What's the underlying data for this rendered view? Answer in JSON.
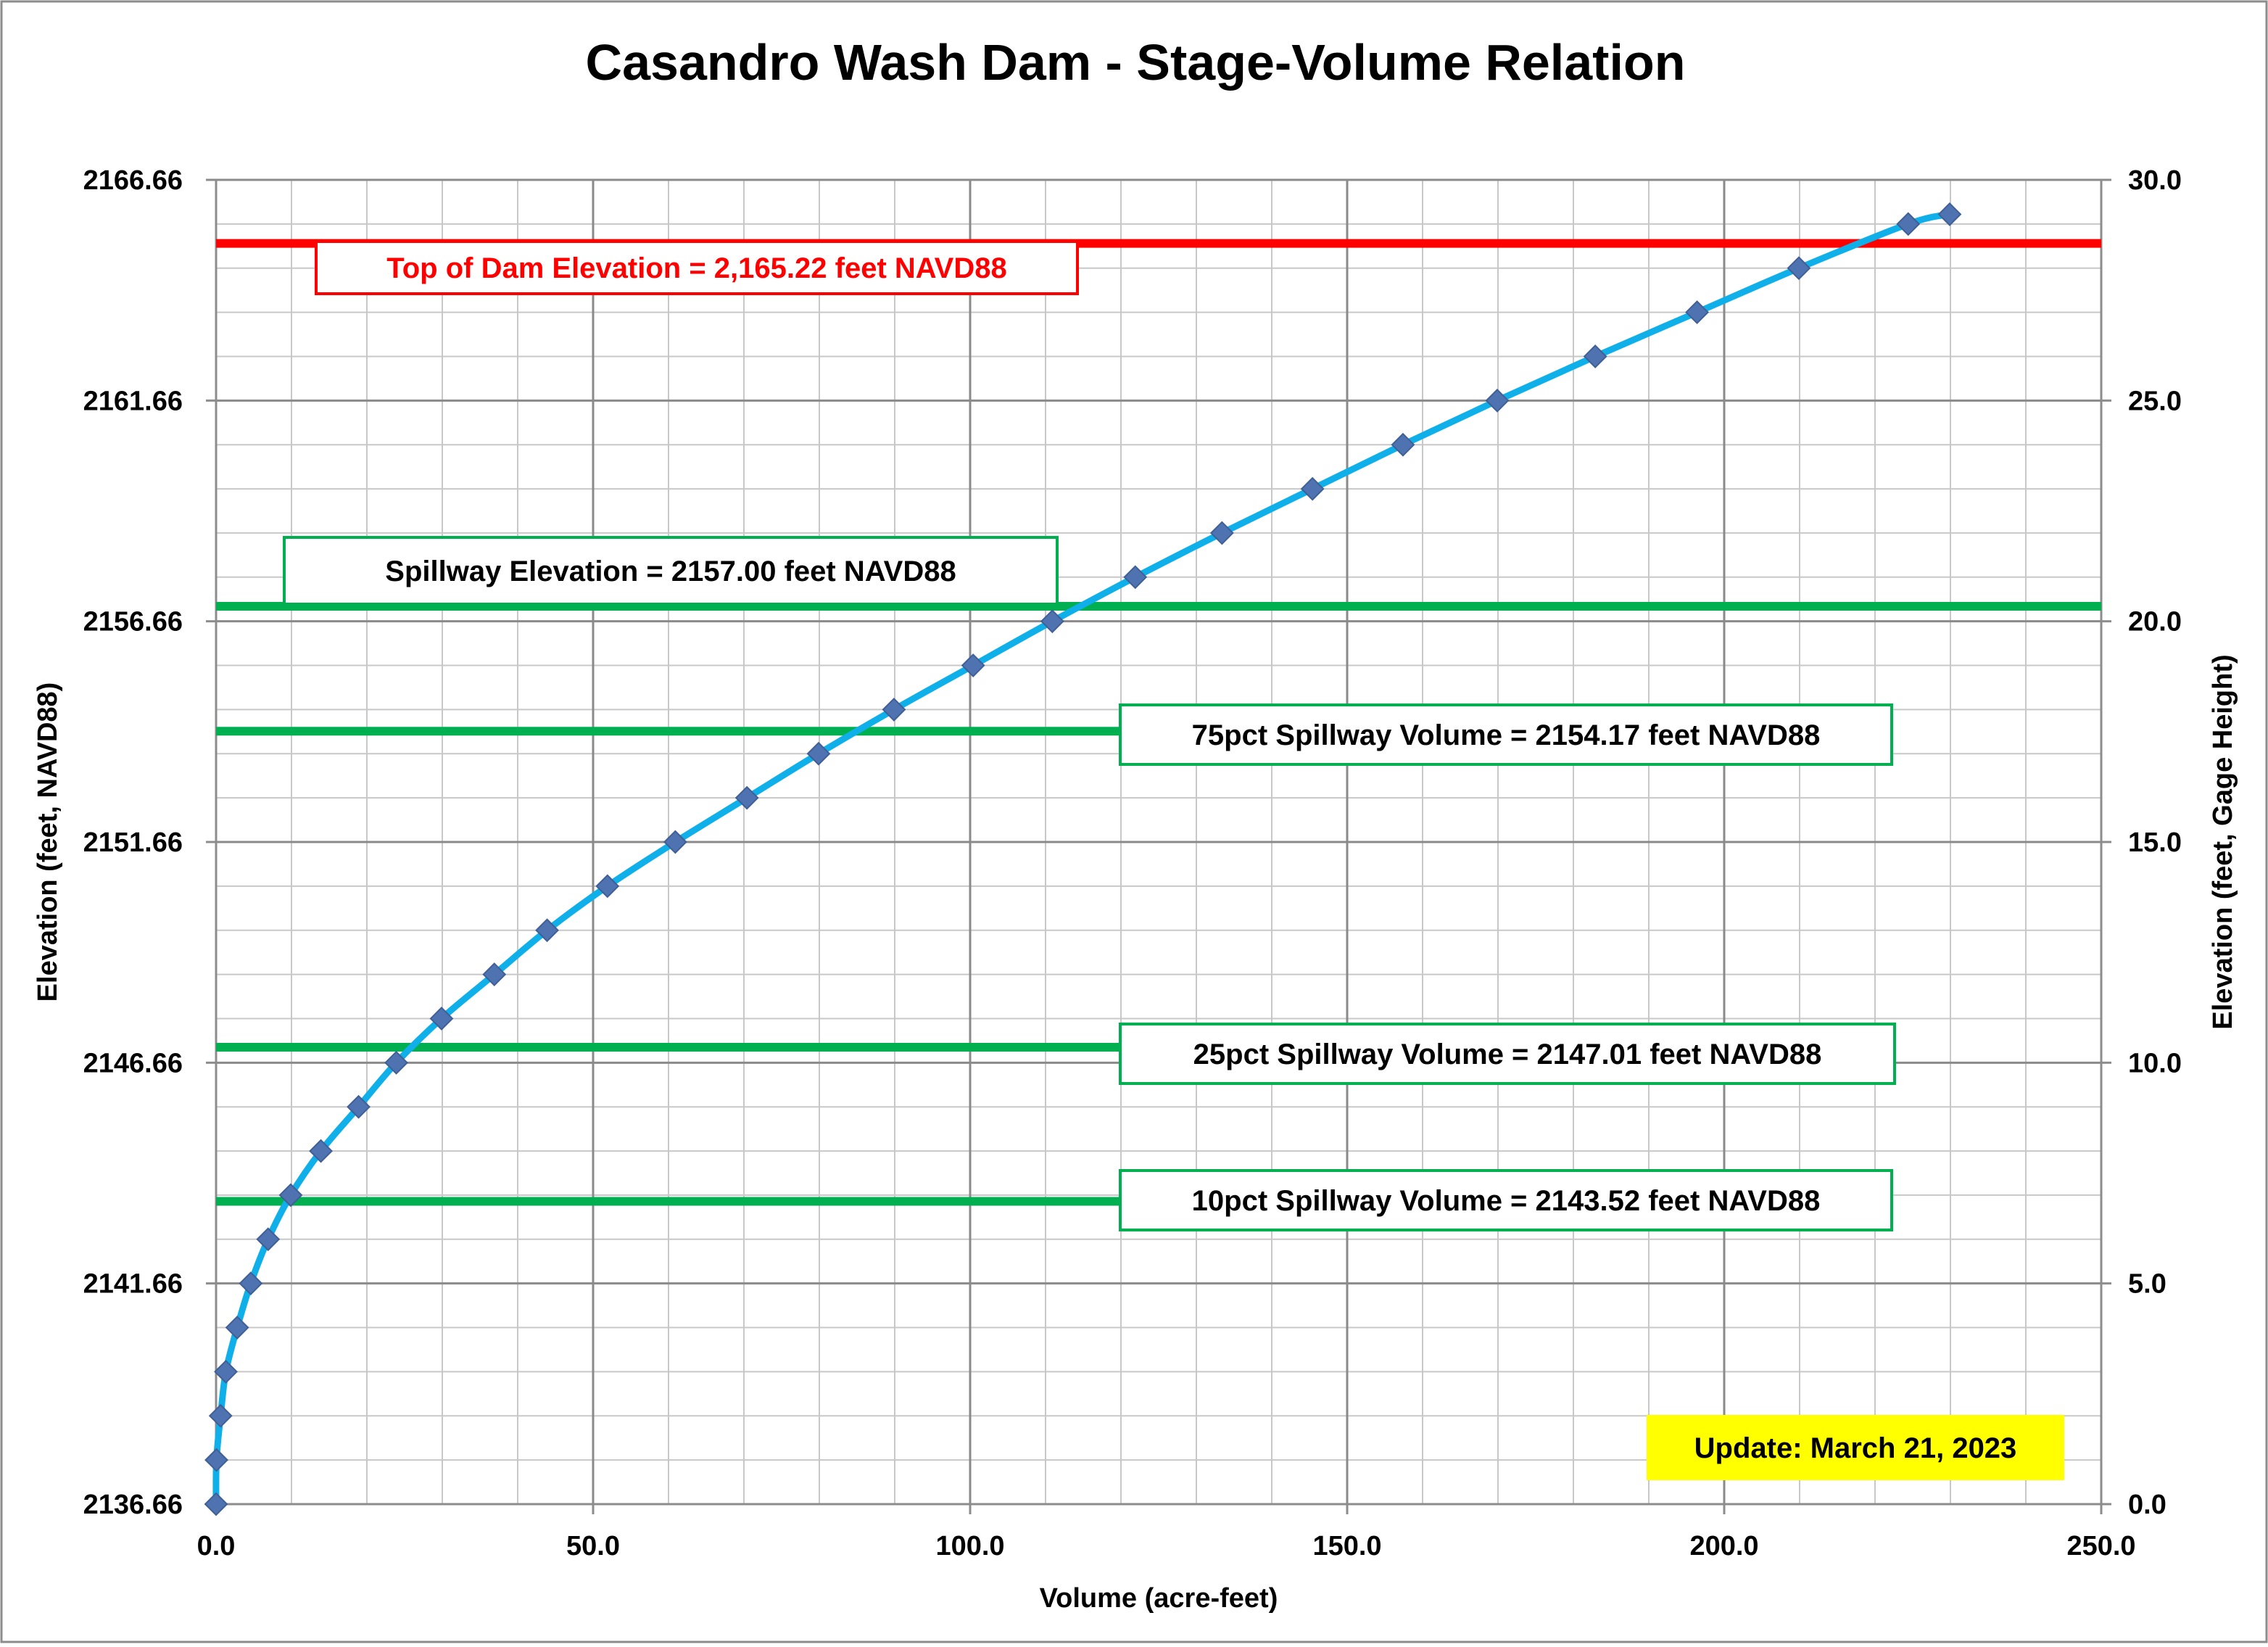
{
  "chart_data": {
    "type": "scatter",
    "title": "Casandro Wash Dam - Stage-Volume Relation",
    "xlabel": "Volume (acre-feet)",
    "ylabel": "Elevation (feet, NAVD88)",
    "y2label": "Elevation (feet, Gage Height)",
    "xlim": [
      0,
      250
    ],
    "ylim": [
      2136.66,
      2166.66
    ],
    "y2lim": [
      0,
      30
    ],
    "x_ticks": [
      "0.0",
      "50.0",
      "100.0",
      "150.0",
      "200.0",
      "250.0"
    ],
    "y_ticks": [
      "2136.66",
      "2141.66",
      "2146.66",
      "2151.66",
      "2156.66",
      "2161.66",
      "2166.66"
    ],
    "y2_ticks": [
      "0.0",
      "5.0",
      "10.0",
      "15.0",
      "20.0",
      "25.0",
      "30.0"
    ],
    "grid": true,
    "series": [
      {
        "style": "smooth line with diamond markers",
        "color": "#0fb0ea",
        "marker_color": "#4f72b0",
        "x": [
          0.0,
          0.05,
          0.6,
          1.3,
          2.8,
          4.6,
          6.9,
          9.9,
          13.9,
          18.9,
          23.9,
          29.9,
          36.9,
          43.9,
          51.9,
          60.9,
          70.4,
          79.9,
          89.9,
          100.4,
          110.9,
          121.9,
          133.4,
          145.4,
          157.4,
          169.9,
          182.9,
          196.4,
          209.9,
          224.4,
          229.9
        ],
        "y": [
          2136.66,
          2137.66,
          2138.66,
          2139.66,
          2140.66,
          2141.66,
          2142.66,
          2143.66,
          2144.66,
          2145.66,
          2146.66,
          2147.66,
          2148.66,
          2149.66,
          2150.66,
          2151.66,
          2152.66,
          2153.66,
          2154.66,
          2155.66,
          2156.66,
          2157.66,
          2158.66,
          2159.66,
          2160.66,
          2161.66,
          2162.66,
          2163.66,
          2164.66,
          2165.66,
          2165.88
        ]
      }
    ],
    "reference_lines": [
      {
        "y": 2165.22,
        "color": "#ff0000",
        "label": "Top of Dam Elevation = 2,165.22 feet NAVD88",
        "label_color": "#ff0000",
        "label_border": "#ff0000"
      },
      {
        "y": 2157.0,
        "color": "#00b050",
        "label": "Spillway Elevation = 2157.00 feet NAVD88",
        "label_color": "#000000",
        "label_border": "#00b050"
      },
      {
        "y": 2154.17,
        "color": "#00b050",
        "label": "75pct Spillway Volume = 2154.17 feet NAVD88",
        "label_color": "#000000",
        "label_border": "#00b050"
      },
      {
        "y": 2147.01,
        "color": "#00b050",
        "label": "25pct Spillway Volume = 2147.01 feet NAVD88",
        "label_color": "#000000",
        "label_border": "#00b050"
      },
      {
        "y": 2143.52,
        "color": "#00b050",
        "label": "10pct Spillway Volume = 2143.52 feet NAVD88",
        "label_color": "#000000",
        "label_border": "#00b050"
      }
    ],
    "update_note": {
      "text": "Update: March 21, 2023",
      "background": "#ffff00"
    }
  }
}
